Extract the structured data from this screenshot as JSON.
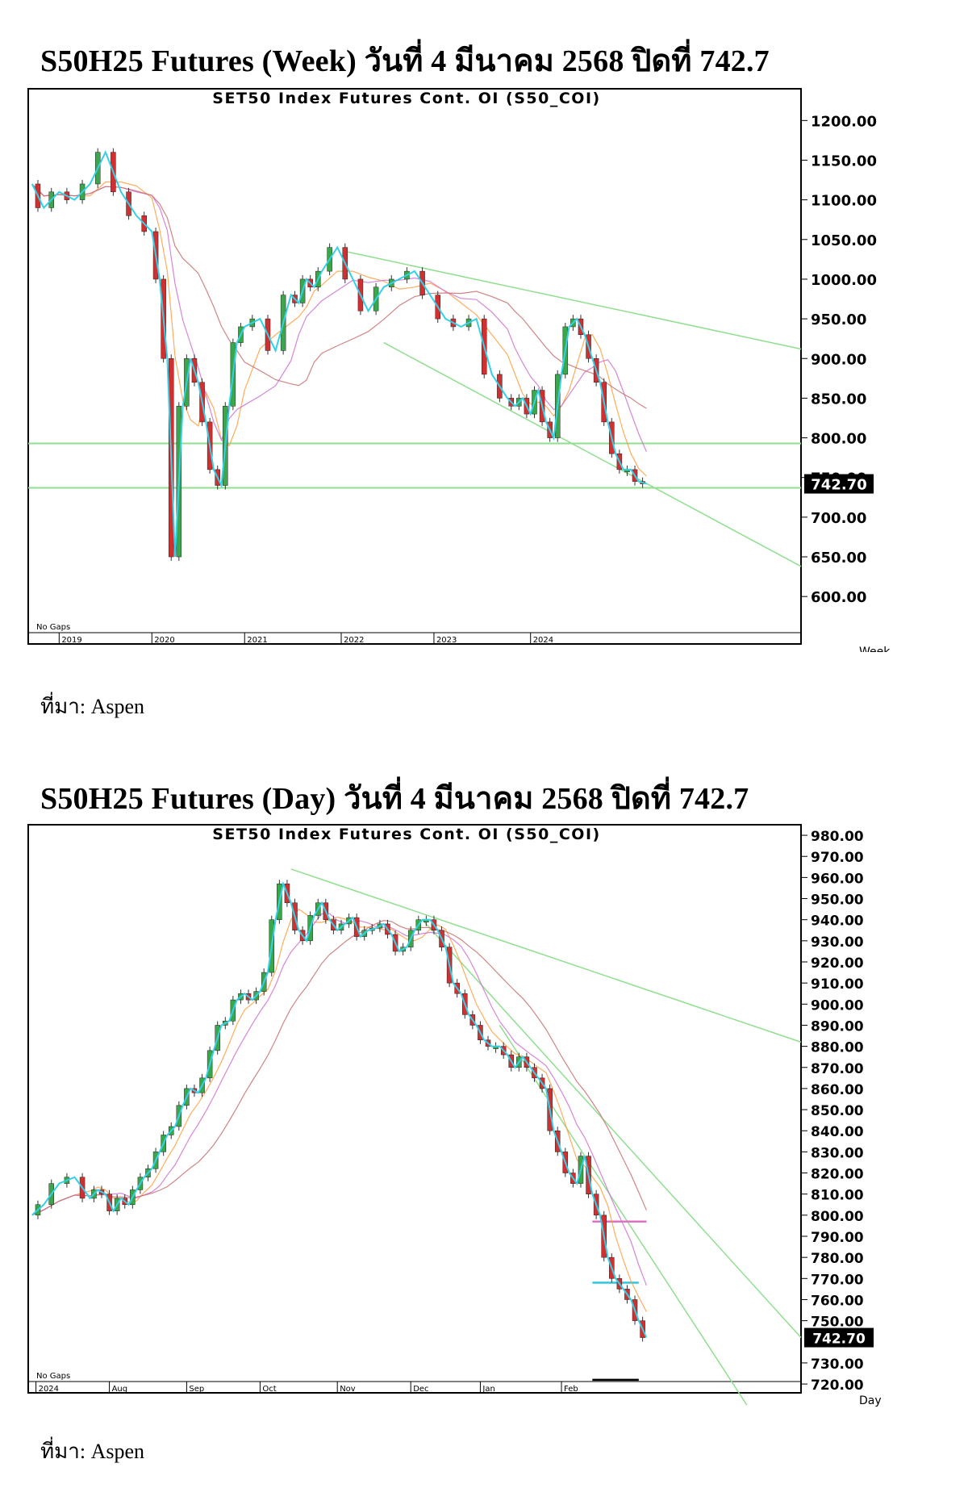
{
  "page": {
    "heading_week": "S50H25 Futures (Week) วันที่ 4 มีนาคม 2568 ปิดที่ 742.7",
    "heading_day": "S50H25 Futures (Day) วันที่ 4 มีนาคม 2568 ปิดที่ 742.7",
    "source_week": "ที่มา: Aspen",
    "source_day": "ที่มา: Aspen"
  },
  "chart_data": [
    {
      "type": "line",
      "title": "SET50 Index Futures Cont. OI (S50_COI)",
      "period_label": "Week",
      "gaps_label": "No Gaps",
      "last_value_label": "742.70",
      "ylim": [
        530,
        1240
      ],
      "yticks": [
        "1200.00",
        "1150.00",
        "1100.00",
        "1050.00",
        "1000.00",
        "950.00",
        "900.00",
        "850.00",
        "800.00",
        "750.00",
        "700.00",
        "650.00",
        "600.00"
      ],
      "ytick_values": [
        1200,
        1150,
        1100,
        1050,
        1000,
        950,
        900,
        850,
        800,
        750,
        700,
        650,
        600
      ],
      "xlim": [
        0,
        100
      ],
      "xticks": [
        {
          "label": "2019",
          "x": 4
        },
        {
          "label": "2020",
          "x": 16
        },
        {
          "label": "2021",
          "x": 28
        },
        {
          "label": "2022",
          "x": 40.5
        },
        {
          "label": "2023",
          "x": 52.5
        },
        {
          "label": "2024",
          "x": 65
        }
      ],
      "series": [
        {
          "x": [
            0.5,
            2,
            4,
            6,
            8,
            10,
            12,
            14,
            16,
            17,
            18,
            19,
            20,
            21,
            22,
            23,
            24,
            25,
            26,
            27,
            28,
            30,
            32,
            34,
            35,
            36,
            37,
            38,
            40,
            42,
            44,
            46,
            48,
            50,
            52,
            54,
            56,
            58,
            60,
            62,
            63,
            64,
            65,
            66,
            67,
            68,
            69,
            70,
            71,
            72,
            73,
            74,
            75,
            76,
            77,
            78,
            79,
            80
          ],
          "y": [
            1120,
            1090,
            1110,
            1100,
            1120,
            1160,
            1110,
            1080,
            1060,
            1000,
            900,
            650,
            840,
            900,
            870,
            820,
            760,
            740,
            840,
            920,
            940,
            950,
            910,
            980,
            970,
            1000,
            990,
            1010,
            1040,
            1000,
            960,
            990,
            1000,
            1010,
            980,
            950,
            940,
            950,
            880,
            850,
            840,
            850,
            830,
            860,
            820,
            800,
            880,
            940,
            950,
            930,
            900,
            870,
            820,
            780,
            760,
            760,
            745,
            742
          ]
        }
      ],
      "annotations": [
        {
          "kind": "hline",
          "y": 793
        },
        {
          "kind": "hline",
          "y": 737
        },
        {
          "kind": "trend",
          "x": [
            41,
            100
          ],
          "y": [
            1035,
            912
          ]
        },
        {
          "kind": "trend",
          "x": [
            46,
            100
          ],
          "y": [
            920,
            638
          ]
        }
      ]
    },
    {
      "type": "line",
      "title": "SET50 Index Futures Cont. OI (S50_COI)",
      "period_label": "Day",
      "gaps_label": "No Gaps",
      "last_value_label": "742.70",
      "ylim": [
        712,
        985
      ],
      "yticks": [
        "980.00",
        "970.00",
        "960.00",
        "950.00",
        "940.00",
        "930.00",
        "920.00",
        "910.00",
        "900.00",
        "890.00",
        "880.00",
        "870.00",
        "860.00",
        "850.00",
        "840.00",
        "830.00",
        "820.00",
        "810.00",
        "800.00",
        "790.00",
        "780.00",
        "770.00",
        "760.00",
        "750.00",
        "730.00",
        "720.00"
      ],
      "ytick_values": [
        980,
        970,
        960,
        950,
        940,
        930,
        920,
        910,
        900,
        890,
        880,
        870,
        860,
        850,
        840,
        830,
        820,
        810,
        800,
        790,
        780,
        770,
        760,
        750,
        730,
        720
      ],
      "xlim": [
        0,
        100
      ],
      "xticks": [
        {
          "label": "2024",
          "x": 1
        },
        {
          "label": "Aug",
          "x": 10.5
        },
        {
          "label": "Sep",
          "x": 20.5
        },
        {
          "label": "Oct",
          "x": 30
        },
        {
          "label": "Nov",
          "x": 40
        },
        {
          "label": "Dec",
          "x": 49.5
        },
        {
          "label": "Jan",
          "x": 58.5
        },
        {
          "label": "Feb",
          "x": 69
        }
      ],
      "series": [
        {
          "x": [
            0.5,
            2,
            4,
            6,
            8,
            9,
            10,
            11,
            12,
            13,
            14,
            15,
            16,
            17,
            18,
            19,
            20,
            21,
            22,
            23,
            24,
            25,
            26,
            27,
            28,
            29,
            30,
            31,
            32,
            33,
            34,
            35,
            36,
            37,
            38,
            39,
            40,
            41,
            42,
            43,
            44,
            45,
            46,
            47,
            48,
            49,
            50,
            51,
            52,
            53,
            54,
            55,
            56,
            57,
            58,
            59,
            60,
            61,
            62,
            63,
            64,
            65,
            66,
            67,
            68,
            69,
            70,
            71,
            72,
            73,
            74,
            75,
            76,
            77,
            78,
            79,
            80
          ],
          "y": [
            800,
            805,
            815,
            818,
            808,
            812,
            810,
            802,
            808,
            805,
            812,
            818,
            822,
            830,
            838,
            842,
            852,
            860,
            858,
            865,
            878,
            890,
            892,
            902,
            905,
            902,
            906,
            915,
            940,
            957,
            948,
            935,
            930,
            942,
            948,
            940,
            935,
            938,
            941,
            932,
            935,
            936,
            938,
            933,
            925,
            927,
            935,
            940,
            940,
            935,
            927,
            910,
            905,
            895,
            890,
            883,
            880,
            880,
            876,
            870,
            875,
            870,
            865,
            860,
            840,
            830,
            820,
            815,
            828,
            810,
            800,
            780,
            770,
            765,
            760,
            750,
            742
          ]
        }
      ],
      "annotations": [
        {
          "kind": "trend",
          "x": [
            34,
            100
          ],
          "y": [
            964,
            882
          ]
        },
        {
          "kind": "trend",
          "x": [
            51,
            100
          ],
          "y": [
            940,
            742
          ]
        },
        {
          "kind": "trend",
          "x": [
            61,
            93
          ],
          "y": [
            890,
            710
          ]
        },
        {
          "kind": "hseg",
          "x": [
            73,
            80
          ],
          "y": 797
        },
        {
          "kind": "hseg",
          "x": [
            73,
            79
          ],
          "y": 768
        },
        {
          "kind": "hseg",
          "x": [
            73,
            79
          ],
          "y": 722
        }
      ]
    }
  ]
}
